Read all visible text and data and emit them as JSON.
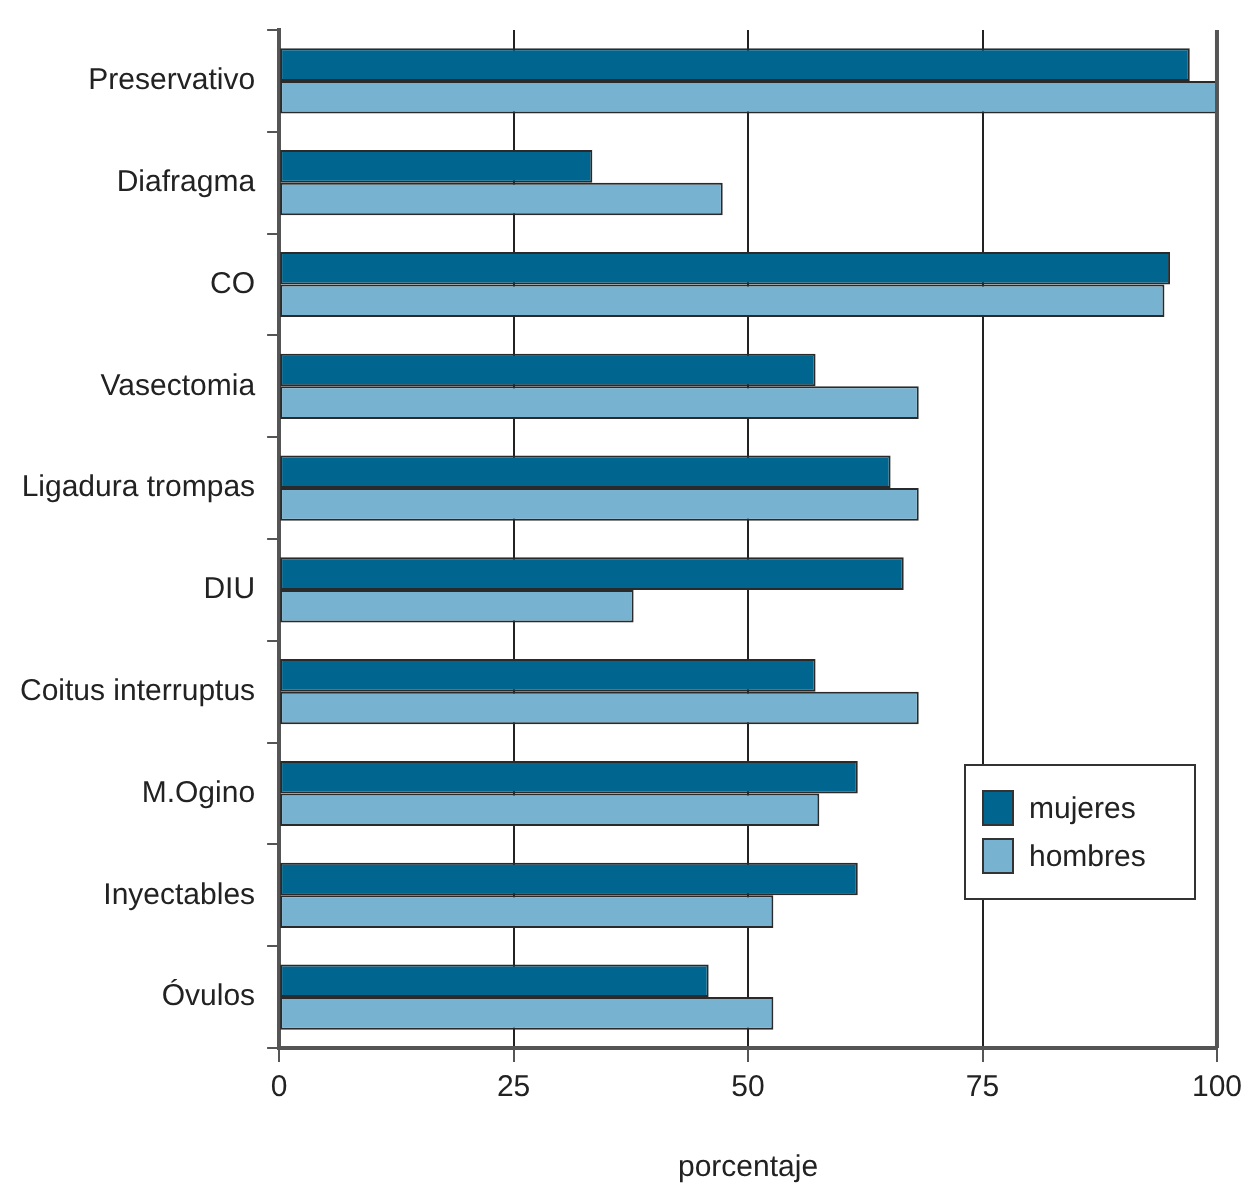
{
  "chart_data": {
    "type": "bar",
    "orientation": "horizontal",
    "xlabel": "porcentaje",
    "categories": [
      "Preservativo",
      "Diafragma",
      "CO",
      "Vasectomia",
      "Ligadura trompas",
      "DIU",
      "Coitus interruptus",
      "M.Ogino",
      "Inyectables",
      "Óvulos"
    ],
    "series": [
      {
        "name": "mujeres",
        "color": "#00668f",
        "values": [
          97.1,
          33.4,
          95.0,
          57.2,
          65.2,
          66.6,
          57.2,
          61.7,
          61.7,
          45.8
        ]
      },
      {
        "name": "hombres",
        "color": "#77b3d0",
        "values": [
          100,
          47.3,
          94.4,
          68.2,
          68.2,
          37.8,
          68.2,
          57.6,
          52.7,
          52.7
        ]
      }
    ],
    "xlim": [
      0,
      100
    ],
    "xticks": [
      0,
      25,
      50,
      75,
      100
    ],
    "grid": "x",
    "legend": "bottom right"
  }
}
